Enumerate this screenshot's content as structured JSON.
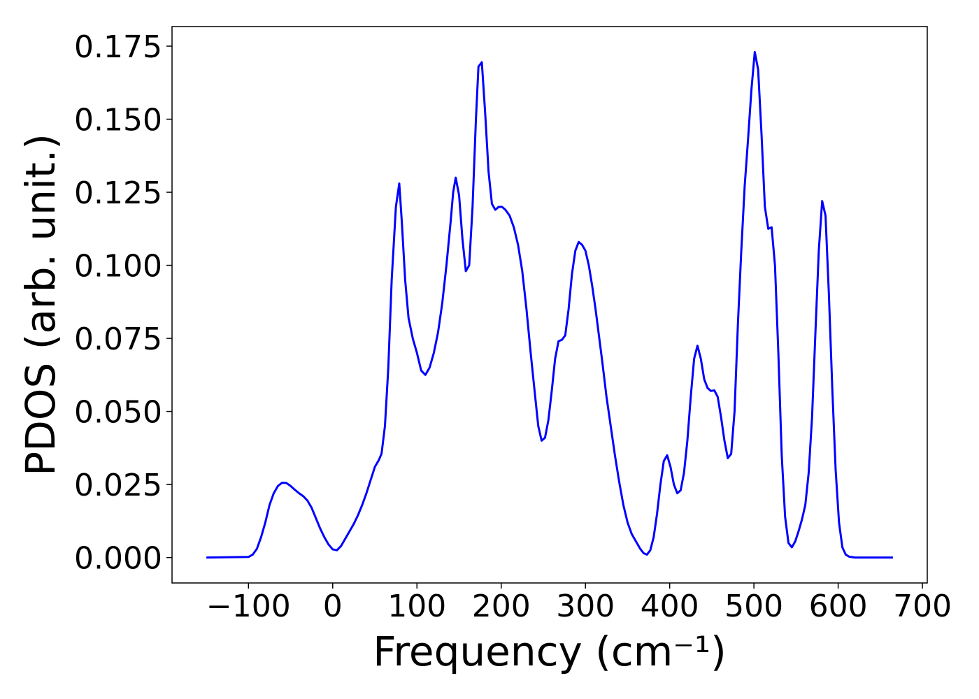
{
  "chart_data": {
    "type": "line",
    "xlabel": "Frequency (cm⁻¹)",
    "ylabel": "PDOS (arb. unit.)",
    "x": [
      -150,
      -100,
      -95,
      -90,
      -85,
      -80,
      -75,
      -70,
      -65,
      -60,
      -55,
      -50,
      -45,
      -40,
      -35,
      -30,
      -25,
      -20,
      -15,
      -10,
      -5,
      0,
      5,
      10,
      15,
      20,
      25,
      30,
      35,
      40,
      45,
      50,
      55,
      58,
      62,
      66,
      70,
      75,
      79,
      82,
      86,
      90,
      95,
      100,
      105,
      110,
      115,
      120,
      125,
      130,
      135,
      140,
      143,
      146,
      150,
      154,
      158,
      162,
      166,
      170,
      173,
      177,
      181,
      185,
      189,
      193,
      197,
      201,
      205,
      210,
      215,
      220,
      225,
      230,
      235,
      240,
      244,
      248,
      252,
      256,
      260,
      264,
      268,
      272,
      276,
      280,
      284,
      288,
      292,
      296,
      300,
      304,
      308,
      312,
      316,
      320,
      325,
      330,
      335,
      340,
      345,
      350,
      355,
      360,
      365,
      369,
      373,
      377,
      381,
      385,
      389,
      393,
      397,
      401,
      405,
      409,
      413,
      417,
      421,
      425,
      429,
      433,
      437,
      441,
      445,
      449,
      453,
      457,
      461,
      465,
      469,
      473,
      477,
      481,
      485,
      489,
      493,
      497,
      501,
      505,
      509,
      513,
      517,
      521,
      525,
      529,
      533,
      537,
      541,
      545,
      549,
      553,
      557,
      561,
      565,
      569,
      573,
      577,
      581,
      585,
      589,
      593,
      597,
      601,
      605,
      609,
      613,
      620,
      665
    ],
    "series": [
      {
        "name": "PDOS",
        "color": "#0000ff",
        "values": [
          0,
          0.0002,
          0.001,
          0.003,
          0.007,
          0.012,
          0.018,
          0.022,
          0.0245,
          0.0256,
          0.0255,
          0.0245,
          0.0232,
          0.022,
          0.021,
          0.0195,
          0.017,
          0.0135,
          0.01,
          0.007,
          0.0045,
          0.0028,
          0.0025,
          0.004,
          0.0065,
          0.009,
          0.0115,
          0.0145,
          0.018,
          0.022,
          0.0265,
          0.031,
          0.0335,
          0.0356,
          0.045,
          0.065,
          0.095,
          0.12,
          0.128,
          0.115,
          0.095,
          0.082,
          0.075,
          0.07,
          0.064,
          0.0625,
          0.065,
          0.07,
          0.077,
          0.087,
          0.1,
          0.115,
          0.125,
          0.13,
          0.124,
          0.109,
          0.098,
          0.1,
          0.12,
          0.15,
          0.168,
          0.1695,
          0.152,
          0.132,
          0.121,
          0.119,
          0.12,
          0.12,
          0.119,
          0.117,
          0.113,
          0.107,
          0.098,
          0.085,
          0.07,
          0.056,
          0.045,
          0.04,
          0.041,
          0.047,
          0.057,
          0.068,
          0.074,
          0.0745,
          0.076,
          0.085,
          0.097,
          0.105,
          0.108,
          0.107,
          0.105,
          0.1,
          0.093,
          0.085,
          0.076,
          0.067,
          0.055,
          0.045,
          0.035,
          0.026,
          0.018,
          0.012,
          0.008,
          0.0055,
          0.003,
          0.0015,
          0.001,
          0.0025,
          0.007,
          0.015,
          0.025,
          0.033,
          0.035,
          0.031,
          0.025,
          0.022,
          0.023,
          0.029,
          0.04,
          0.055,
          0.068,
          0.0725,
          0.068,
          0.061,
          0.058,
          0.057,
          0.0572,
          0.055,
          0.048,
          0.04,
          0.034,
          0.0355,
          0.05,
          0.08,
          0.105,
          0.127,
          0.143,
          0.16,
          0.173,
          0.167,
          0.145,
          0.12,
          0.1125,
          0.113,
          0.1,
          0.07,
          0.035,
          0.014,
          0.005,
          0.0035,
          0.0055,
          0.009,
          0.013,
          0.018,
          0.029,
          0.048,
          0.077,
          0.105,
          0.122,
          0.117,
          0.09,
          0.058,
          0.03,
          0.012,
          0.0035,
          0.001,
          0.0003,
          0,
          0
        ]
      }
    ],
    "xlim": [
      -190.75,
      705.75
    ],
    "xticks": [
      {
        "value": -100,
        "label": "−100"
      },
      0,
      100,
      200,
      300,
      400,
      500,
      600,
      700
    ],
    "ylim": [
      -0.0087,
      0.1817
    ],
    "yticks": [
      {
        "value": 0,
        "label": "0.000"
      },
      0.025,
      {
        "value": 0.05,
        "label": "0.050"
      },
      0.075,
      {
        "value": 0.1,
        "label": "0.100"
      },
      0.125,
      {
        "value": 0.15,
        "label": "0.150"
      },
      0.175
    ]
  }
}
